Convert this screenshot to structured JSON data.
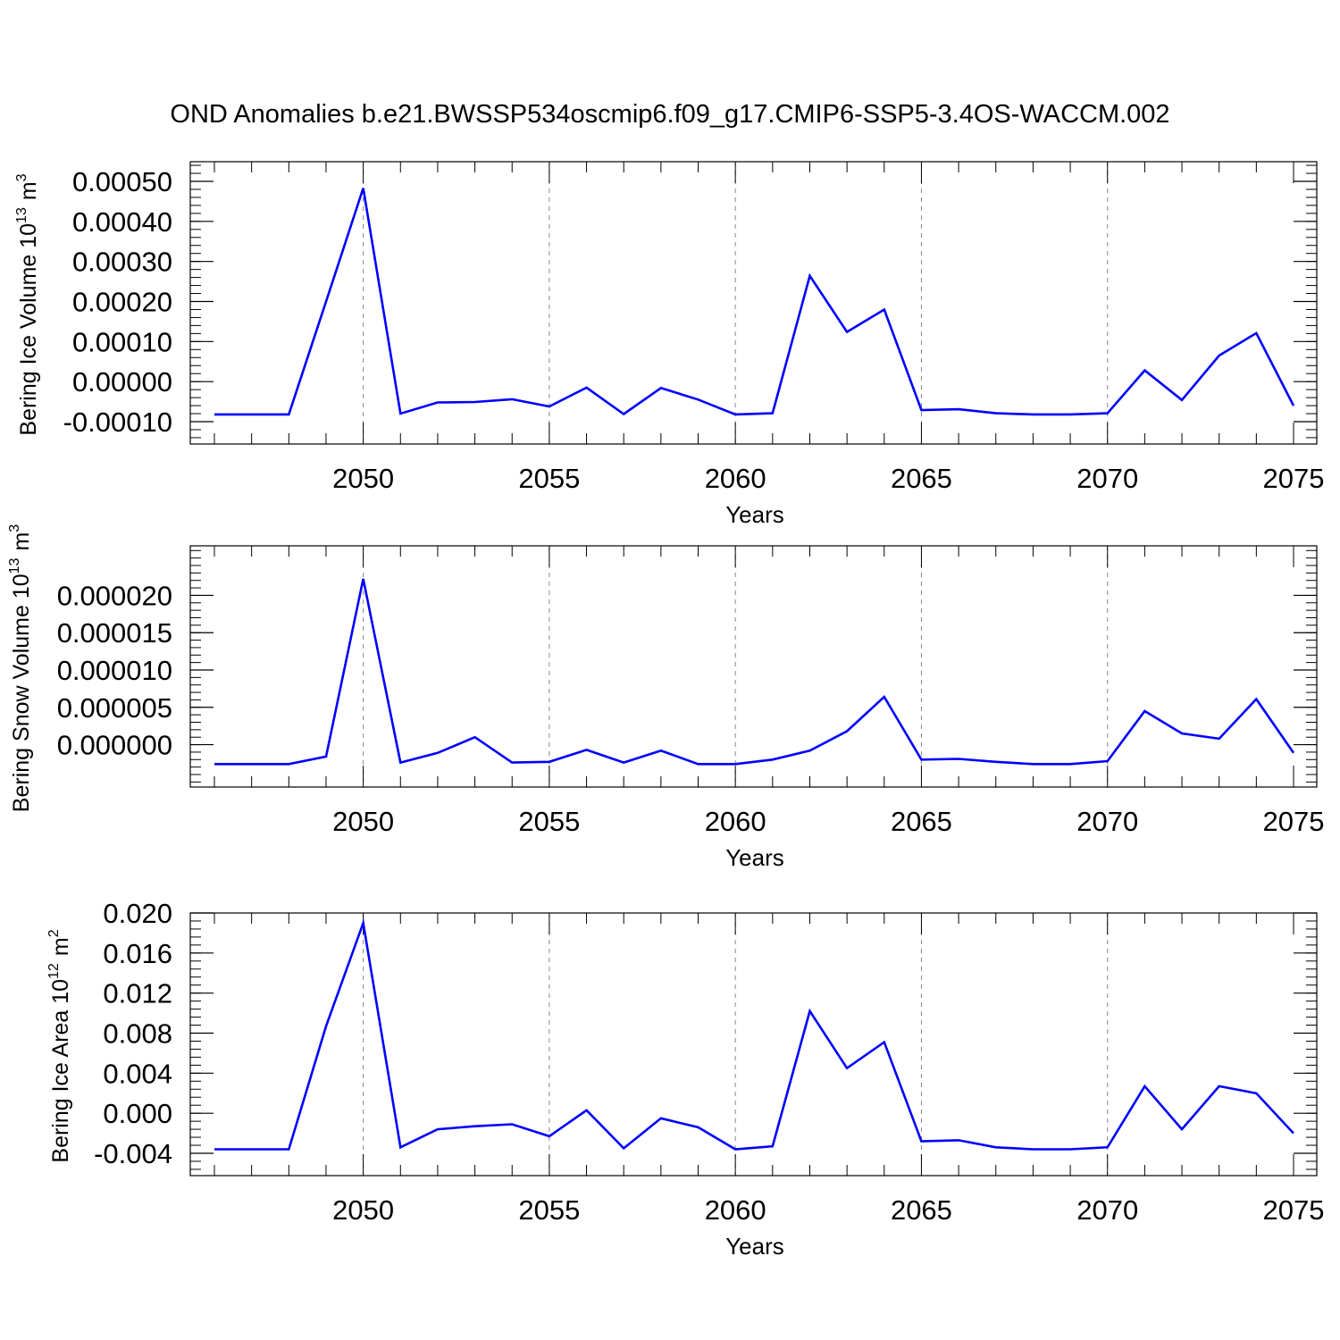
{
  "title": "OND Anomalies b.e21.BWSSP534oscmip6.f09_g17.CMIP6-SSP5-3.4OS-WACCM.002",
  "colors": {
    "line": "#0000ff",
    "axis": "#000000",
    "grid": "#888888"
  },
  "chart_data": [
    {
      "type": "line",
      "ylabel": "Bering Ice Volume 10",
      "ylabel_sup": "13",
      "ylabel_unit": "m",
      "ylabel_unit_sup": "3",
      "xlabel": "Years",
      "xlim": [
        2046,
        2075
      ],
      "xticks": [
        "2050",
        "2055",
        "2060",
        "2065",
        "2070",
        "2075"
      ],
      "ylim": [
        -0.0001,
        0.0005
      ],
      "yticks": [
        "-0.00010",
        "0.00000",
        "0.00010",
        "0.00020",
        "0.00030",
        "0.00040",
        "0.00050"
      ],
      "x": [
        2046,
        2047,
        2048,
        2049,
        2050,
        2051,
        2052,
        2053,
        2054,
        2055,
        2056,
        2057,
        2058,
        2059,
        2060,
        2061,
        2062,
        2063,
        2064,
        2065,
        2066,
        2067,
        2068,
        2069,
        2070,
        2071,
        2072,
        2073,
        2074,
        2075
      ],
      "series": [
        {
          "values": [
            -8.2e-05,
            -8.2e-05,
            -8.2e-05,
            0.0002,
            0.000483,
            -8e-05,
            -5.2e-05,
            -5.1e-05,
            -4.4e-05,
            -6.2e-05,
            -1.5e-05,
            -8.1e-05,
            -1.6e-05,
            -4.5e-05,
            -8.2e-05,
            -7.9e-05,
            0.000264,
            0.000124,
            0.00018,
            -7.1e-05,
            -6.9e-05,
            -7.9e-05,
            -8.2e-05,
            -8.2e-05,
            -7.9e-05,
            2.8e-05,
            -4.6e-05,
            6.5e-05,
            0.000121,
            -6e-05
          ]
        }
      ]
    },
    {
      "type": "line",
      "ylabel": "Bering Snow Volume 10",
      "ylabel_sup": "13",
      "ylabel_unit": "m",
      "ylabel_unit_sup": "3",
      "xlabel": "Years",
      "xlim": [
        2046,
        2075
      ],
      "xticks": [
        "2050",
        "2055",
        "2060",
        "2065",
        "2070",
        "2075"
      ],
      "ylim": [
        -4e-06,
        2.4e-05
      ],
      "yticks": [
        "0.000000",
        "0.000005",
        "0.000010",
        "0.000015",
        "0.000020"
      ],
      "x": [
        2046,
        2047,
        2048,
        2049,
        2050,
        2051,
        2052,
        2053,
        2054,
        2055,
        2056,
        2057,
        2058,
        2059,
        2060,
        2061,
        2062,
        2063,
        2064,
        2065,
        2066,
        2067,
        2068,
        2069,
        2070,
        2071,
        2072,
        2073,
        2074,
        2075
      ],
      "series": [
        {
          "values": [
            -2.6e-06,
            -2.6e-06,
            -2.6e-06,
            -1.6e-06,
            2.22e-05,
            -2.4e-06,
            -1.1e-06,
            1e-06,
            -2.4e-06,
            -2.3e-06,
            -7e-07,
            -2.4e-06,
            -8e-07,
            -2.6e-06,
            -2.6e-06,
            -2e-06,
            -8e-07,
            1.8e-06,
            6.4e-06,
            -2e-06,
            -1.9e-06,
            -2.3e-06,
            -2.6e-06,
            -2.6e-06,
            -2.2e-06,
            4.5e-06,
            1.5e-06,
            8e-07,
            6.1e-06,
            -1.1e-06
          ]
        }
      ]
    },
    {
      "type": "line",
      "ylabel": "Bering Ice Area 10",
      "ylabel_sup": "12",
      "ylabel_unit": "m",
      "ylabel_unit_sup": "2",
      "xlabel": "Years",
      "xlim": [
        2046,
        2075
      ],
      "xticks": [
        "2050",
        "2055",
        "2060",
        "2065",
        "2070",
        "2075"
      ],
      "ylim": [
        -0.004,
        0.02
      ],
      "yticks": [
        "-0.004",
        "0.000",
        "0.004",
        "0.008",
        "0.012",
        "0.016",
        "0.020"
      ],
      "x": [
        2046,
        2047,
        2048,
        2049,
        2050,
        2051,
        2052,
        2053,
        2054,
        2055,
        2056,
        2057,
        2058,
        2059,
        2060,
        2061,
        2062,
        2063,
        2064,
        2065,
        2066,
        2067,
        2068,
        2069,
        2070,
        2071,
        2072,
        2073,
        2074,
        2075
      ],
      "series": [
        {
          "values": [
            -0.0036,
            -0.0036,
            -0.0036,
            0.0087,
            0.019,
            -0.0034,
            -0.0016,
            -0.0013,
            -0.0011,
            -0.0023,
            0.0003,
            -0.0035,
            -0.0005,
            -0.0014,
            -0.0036,
            -0.0033,
            0.0102,
            0.0045,
            0.0071,
            -0.0028,
            -0.0027,
            -0.0034,
            -0.0036,
            -0.0036,
            -0.0034,
            0.0027,
            -0.0016,
            0.0027,
            0.002,
            -0.002
          ]
        }
      ]
    }
  ]
}
